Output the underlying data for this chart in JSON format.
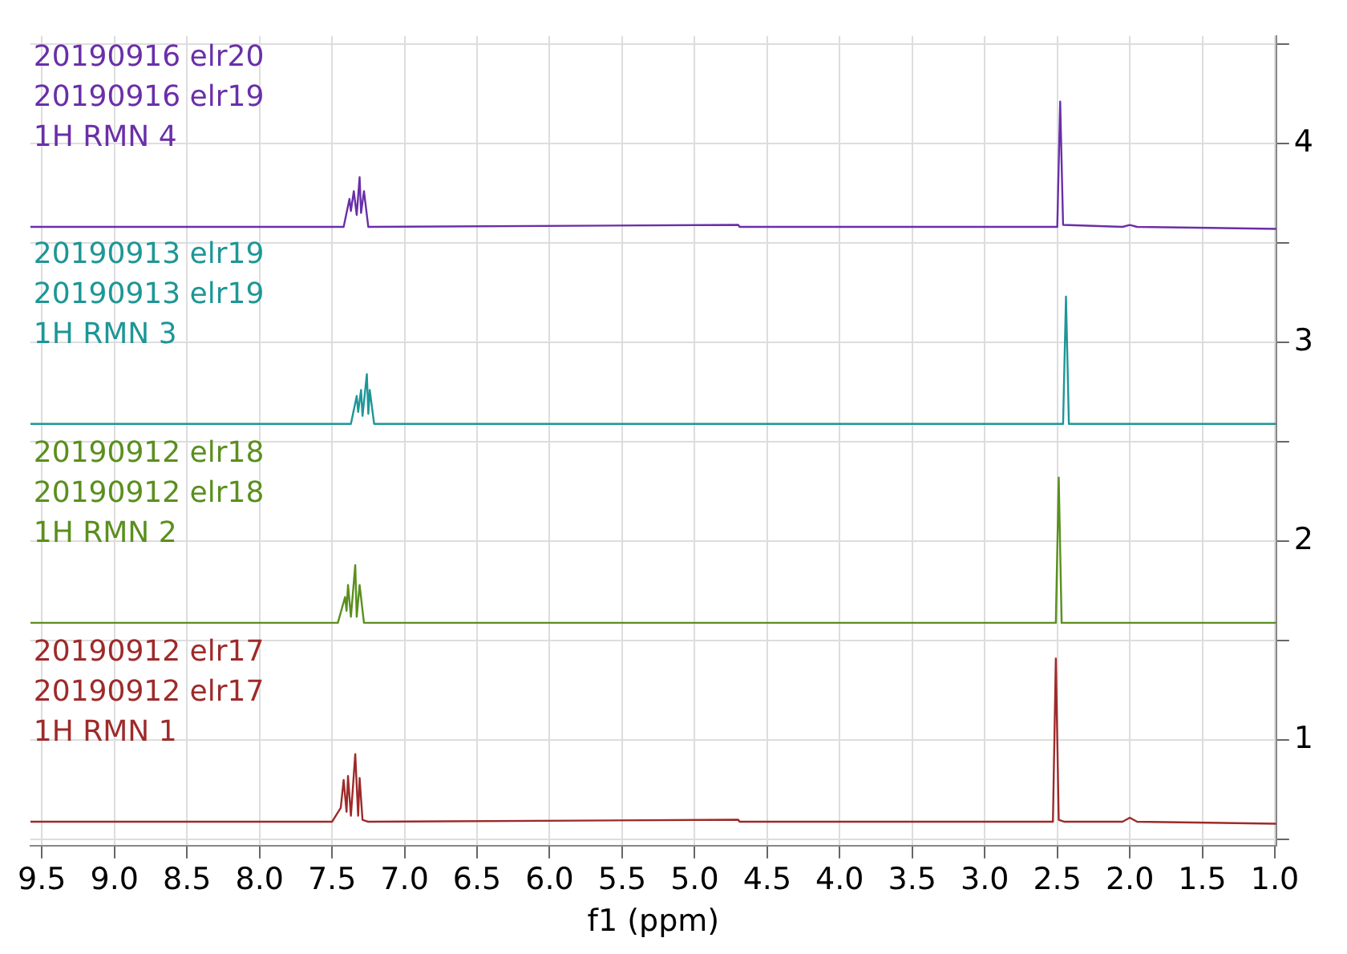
{
  "chart_data": {
    "type": "line",
    "xlabel": "f1 (ppm)",
    "grid": true,
    "xlim": [
      9.58,
      0.99
    ],
    "ylim": [
      0.47,
      4.54
    ],
    "xticks": [
      {
        "value": 9.5,
        "label": "9.5"
      },
      {
        "value": 9,
        "label": "9.0"
      },
      {
        "value": 8.5,
        "label": "8.5"
      },
      {
        "value": 8,
        "label": "8.0"
      },
      {
        "value": 7.5,
        "label": "7.5"
      },
      {
        "value": 7,
        "label": "7.0"
      },
      {
        "value": 6.5,
        "label": "6.5"
      },
      {
        "value": 6,
        "label": "6.0"
      },
      {
        "value": 5.5,
        "label": "5.5"
      },
      {
        "value": 5,
        "label": "5.0"
      },
      {
        "value": 4.5,
        "label": "4.5"
      },
      {
        "value": 4,
        "label": "4.0"
      },
      {
        "value": 3.5,
        "label": "3.5"
      },
      {
        "value": 3,
        "label": "3.0"
      },
      {
        "value": 2.5,
        "label": "2.5"
      },
      {
        "value": 2,
        "label": "2.0"
      },
      {
        "value": 1.5,
        "label": "1.5"
      },
      {
        "value": 1,
        "label": "1.0"
      }
    ],
    "yticks": [
      {
        "value": 0.5,
        "label": null
      },
      1,
      {
        "value": 1.5,
        "label": null
      },
      2,
      {
        "value": 2.5,
        "label": null
      },
      3,
      {
        "value": 3.5,
        "label": null
      },
      4,
      {
        "value": 4.5,
        "label": null
      }
    ],
    "marker": "none",
    "line_style": "solid",
    "series": [
      {
        "name": "20190912 elr17\n20190912 elr17\n1H RMN 1",
        "color": "#9e2a2a",
        "x": [
          9.58,
          7.5,
          7.44,
          7.42,
          7.4,
          7.39,
          7.37,
          7.34,
          7.32,
          7.31,
          7.29,
          7.25,
          4.7,
          4.69,
          2.53,
          2.51,
          2.49,
          2.45,
          2.05,
          2,
          1.95,
          0.99
        ],
        "values": [
          0.59,
          0.59,
          0.66,
          0.8,
          0.64,
          0.82,
          0.62,
          0.93,
          0.62,
          0.81,
          0.6,
          0.59,
          0.6,
          0.59,
          0.59,
          1.41,
          0.6,
          0.59,
          0.59,
          0.61,
          0.59,
          0.58
        ]
      },
      {
        "name": "20190912 elr18\n20190912 elr18\n1H RMN 2",
        "color": "#5a8f1e",
        "x": [
          9.58,
          7.46,
          7.41,
          7.4,
          7.39,
          7.37,
          7.34,
          7.33,
          7.31,
          7.28,
          2.51,
          2.49,
          2.47,
          0.99
        ],
        "values": [
          1.59,
          1.59,
          1.72,
          1.65,
          1.78,
          1.62,
          1.88,
          1.62,
          1.78,
          1.59,
          1.59,
          2.32,
          1.59,
          1.59
        ]
      },
      {
        "name": "20190913 elr19\n20190913 elr19\n1H RMN 3",
        "color": "#1e9696",
        "x": [
          9.58,
          7.37,
          7.33,
          7.32,
          7.3,
          7.29,
          7.26,
          7.25,
          7.24,
          7.21,
          2.46,
          2.44,
          2.42,
          0.99
        ],
        "values": [
          2.59,
          2.59,
          2.73,
          2.65,
          2.76,
          2.63,
          2.84,
          2.64,
          2.76,
          2.59,
          2.59,
          3.23,
          2.59,
          2.59
        ]
      },
      {
        "name": "20190916 elr20\n20190916 elr19\n1H RMN 4",
        "color": "#6a2fa8",
        "x": [
          9.58,
          7.42,
          7.38,
          7.37,
          7.35,
          7.33,
          7.31,
          7.3,
          7.28,
          7.25,
          4.7,
          4.69,
          2.5,
          2.48,
          2.46,
          2.05,
          2,
          1.95,
          0.99
        ],
        "values": [
          3.58,
          3.58,
          3.72,
          3.66,
          3.76,
          3.64,
          3.83,
          3.65,
          3.76,
          3.58,
          3.59,
          3.58,
          3.58,
          4.21,
          3.59,
          3.58,
          3.59,
          3.58,
          3.57
        ]
      }
    ]
  }
}
